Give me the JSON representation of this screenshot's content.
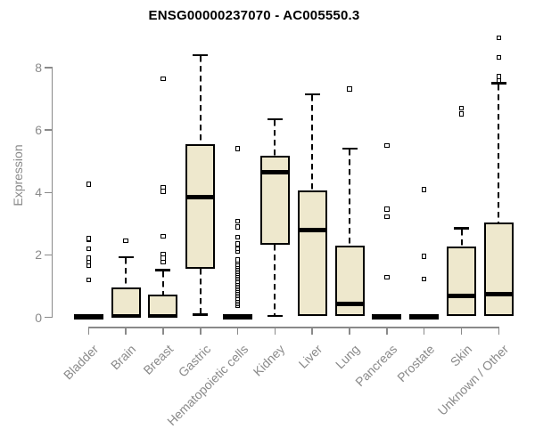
{
  "colors": {
    "box_fill": "#EEE8CD",
    "box_border": "#000000",
    "median": "#000000",
    "whisker": "#000000",
    "axis_gray": "#8a8a8a",
    "text_gray": "#8a8a8a",
    "title_color": "#000000",
    "background": "#ffffff"
  },
  "chart_data": {
    "type": "boxplot",
    "title": "ENSG00000237070 - AC005550.3",
    "xlabel": "",
    "ylabel": "Expression",
    "ylim": [
      0,
      8
    ],
    "yticks": [
      0,
      2,
      4,
      6,
      8
    ],
    "grid": false,
    "legend": "none",
    "categories": [
      "Bladder",
      "Brain",
      "Breast",
      "Gastric",
      "Hematopoietic cells",
      "Kidney",
      "Liver",
      "Lung",
      "Pancreas",
      "Prostate",
      "Skin",
      "Unknown / Other"
    ],
    "series": [
      {
        "category": "Bladder",
        "whisker_low": 0,
        "q1": 0,
        "median": 0.02,
        "q3": 0.05,
        "whisker_high": 0.05,
        "outliers": [
          1.2,
          1.65,
          1.78,
          1.9,
          2.19,
          2.48,
          2.52,
          4.27
        ]
      },
      {
        "category": "Brain",
        "whisker_low": 0,
        "q1": 0,
        "median": 0.04,
        "q3": 0.95,
        "whisker_high": 1.93,
        "outliers": [
          2.46
        ]
      },
      {
        "category": "Breast",
        "whisker_low": 0,
        "q1": 0,
        "median": 0.04,
        "q3": 0.72,
        "whisker_high": 1.51,
        "outliers": [
          1.78,
          1.9,
          2.03,
          2.6,
          4.03,
          4.17,
          7.65
        ]
      },
      {
        "category": "Gastric",
        "whisker_low": 0.08,
        "q1": 1.55,
        "median": 3.85,
        "q3": 5.55,
        "whisker_high": 8.4,
        "outliers": []
      },
      {
        "category": "Hematopoietic cells",
        "whisker_low": 0,
        "q1": 0,
        "median": 0.02,
        "q3": 0.05,
        "whisker_high": 0.05,
        "outliers": [
          0.38,
          0.44,
          0.5,
          0.56,
          0.62,
          0.68,
          0.74,
          0.8,
          0.86,
          0.92,
          0.98,
          1.04,
          1.1,
          1.16,
          1.22,
          1.28,
          1.34,
          1.4,
          1.46,
          1.52,
          1.58,
          1.64,
          1.7,
          1.77,
          1.84,
          2.12,
          2.2,
          2.36,
          2.57,
          2.89,
          3.08,
          5.41
        ]
      },
      {
        "category": "Kidney",
        "whisker_low": 0.05,
        "q1": 2.33,
        "median": 4.65,
        "q3": 5.18,
        "whisker_high": 6.35,
        "outliers": []
      },
      {
        "category": "Liver",
        "whisker_low": 0,
        "q1": 0.05,
        "median": 2.8,
        "q3": 4.07,
        "whisker_high": 7.15,
        "outliers": []
      },
      {
        "category": "Lung",
        "whisker_low": 0,
        "q1": 0.05,
        "median": 0.43,
        "q3": 2.31,
        "whisker_high": 5.41,
        "outliers": [
          7.31
        ]
      },
      {
        "category": "Pancreas",
        "whisker_low": 0,
        "q1": 0,
        "median": 0.02,
        "q3": 0.05,
        "whisker_high": 0.05,
        "outliers": [
          1.29,
          3.22,
          3.46,
          5.51
        ]
      },
      {
        "category": "Prostate",
        "whisker_low": 0,
        "q1": 0,
        "median": 0.02,
        "q3": 0.05,
        "whisker_high": 0.05,
        "outliers": [
          1.22,
          1.95,
          4.09
        ]
      },
      {
        "category": "Skin",
        "whisker_low": 0,
        "q1": 0.03,
        "median": 0.69,
        "q3": 2.27,
        "whisker_high": 2.85,
        "outliers": [
          6.52,
          6.7
        ]
      },
      {
        "category": "Unknown / Other",
        "whisker_low": 0,
        "q1": 0.03,
        "median": 0.74,
        "q3": 3.04,
        "whisker_high": 7.5,
        "outliers": [
          7.6,
          7.72,
          8.33,
          8.95
        ]
      }
    ]
  }
}
